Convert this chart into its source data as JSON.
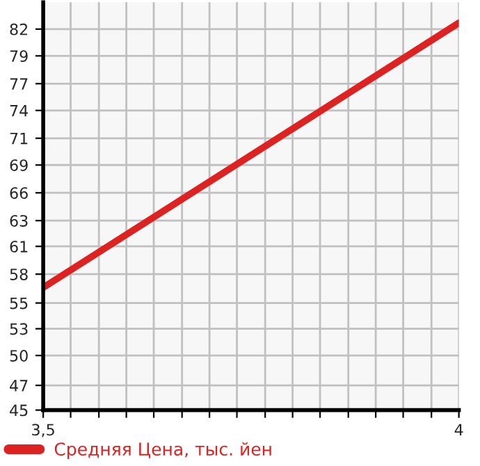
{
  "chart_data": {
    "type": "line",
    "x": [
      3.5,
      4
    ],
    "series": [
      {
        "name": "Средняя Цена, тыс. йен",
        "color": "#dd2222",
        "values": [
          56.9,
          82.6
        ]
      }
    ],
    "xlim": [
      3.5,
      4
    ],
    "xticks": [
      {
        "value": 3.5,
        "label": "3,5"
      },
      {
        "value": 3.533,
        "label": null
      },
      {
        "value": 3.567,
        "label": null
      },
      {
        "value": 3.6,
        "label": null
      },
      {
        "value": 3.633,
        "label": null
      },
      {
        "value": 3.667,
        "label": null
      },
      {
        "value": 3.7,
        "label": null
      },
      {
        "value": 3.733,
        "label": null
      },
      {
        "value": 3.767,
        "label": null
      },
      {
        "value": 3.8,
        "label": null
      },
      {
        "value": 3.833,
        "label": null
      },
      {
        "value": 3.867,
        "label": null
      },
      {
        "value": 3.9,
        "label": null
      },
      {
        "value": 3.933,
        "label": null
      },
      {
        "value": 3.967,
        "label": null
      },
      4
    ],
    "ylim": [
      45,
      84.6
    ],
    "yticks": [
      45,
      {
        "value": 47.4,
        "label": "47"
      },
      {
        "value": 50.3,
        "label": "50"
      },
      {
        "value": 52.9,
        "label": "53"
      },
      {
        "value": 55.4,
        "label": "55"
      },
      {
        "value": 58.2,
        "label": "58"
      },
      {
        "value": 60.9,
        "label": "61"
      },
      {
        "value": 63.4,
        "label": "63"
      },
      {
        "value": 66.1,
        "label": "66"
      },
      {
        "value": 68.8,
        "label": "69"
      },
      {
        "value": 71.4,
        "label": "71"
      },
      {
        "value": 74.1,
        "label": "74"
      },
      {
        "value": 76.7,
        "label": "77"
      },
      {
        "value": 79.4,
        "label": "79"
      },
      {
        "value": 82.0,
        "label": "82"
      }
    ],
    "grid": true,
    "legend": "bottom left",
    "marker": "none",
    "line_style": "solid"
  }
}
